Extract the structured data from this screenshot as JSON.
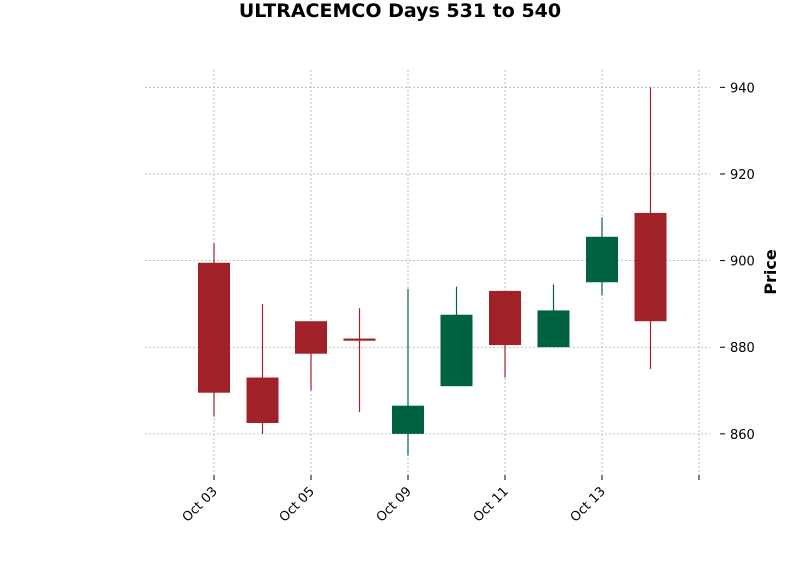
{
  "chart_data": {
    "type": "candlestick",
    "title": "ULTRACEMCO Days 531 to 540",
    "xlabel": "",
    "ylabel": "Price",
    "ylim": [
      850.5,
      944
    ],
    "y_ticks": [
      860,
      880,
      900,
      920,
      940
    ],
    "x_tick_labels": [
      "Oct 03",
      "Oct 05",
      "Oct 09",
      "Oct 11",
      "Oct 13",
      ""
    ],
    "grid": true,
    "y_axis_side": "right",
    "colors": {
      "up": "#006340",
      "down": "#a02128",
      "grid": "#b0b0b0"
    },
    "candles": [
      {
        "date": "Oct 03",
        "open": 899.5,
        "high": 904,
        "low": 864,
        "close": 869.5
      },
      {
        "date": "Oct 04",
        "open": 873,
        "high": 890,
        "low": 860,
        "close": 862.5
      },
      {
        "date": "Oct 05",
        "open": 886,
        "high": 886,
        "low": 870,
        "close": 878.5
      },
      {
        "date": "Oct 06",
        "open": 882,
        "high": 889,
        "low": 865,
        "close": 881.5
      },
      {
        "date": "Oct 09",
        "open": 860,
        "high": 893.5,
        "low": 855,
        "close": 866.5
      },
      {
        "date": "Oct 10",
        "open": 871,
        "high": 894,
        "low": 871,
        "close": 887.5
      },
      {
        "date": "Oct 11",
        "open": 893,
        "high": 893,
        "low": 873,
        "close": 880.5
      },
      {
        "date": "Oct 12",
        "open": 880,
        "high": 894.5,
        "low": 880,
        "close": 888.5
      },
      {
        "date": "Oct 13",
        "open": 895,
        "high": 910,
        "low": 892,
        "close": 905.5
      },
      {
        "date": "Oct 16",
        "open": 911,
        "high": 940,
        "low": 875,
        "close": 886
      }
    ]
  }
}
